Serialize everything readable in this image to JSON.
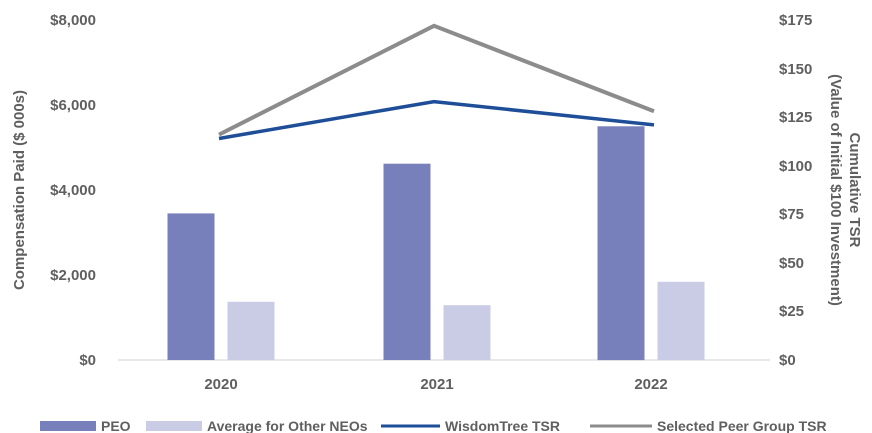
{
  "chart_data": {
    "type": "bar",
    "categories": [
      "2020",
      "2021",
      "2022"
    ],
    "bar_series": [
      {
        "name": "PEO",
        "values": [
          3450,
          4620,
          5500
        ],
        "color": "#7880bc"
      },
      {
        "name": "Average for Other NEOs",
        "values": [
          1370,
          1290,
          1840
        ],
        "color": "#c9cce4"
      }
    ],
    "line_series": [
      {
        "name": "WisdomTree TSR",
        "values": [
          114,
          133,
          121
        ],
        "color": "#1f4e99"
      },
      {
        "name": "Selected Peer Group TSR",
        "values": [
          116,
          172,
          128
        ],
        "color": "#8c8c8c"
      }
    ],
    "y_left": {
      "label": "Compensation Paid ($ 000s)",
      "lim": [
        0,
        8000
      ],
      "ticks": [
        "$0",
        "$2,000",
        "$4,000",
        "$6,000",
        "$8,000"
      ]
    },
    "y_right": {
      "label_line1": "Cumulative TSR",
      "label_line2": "(Value of Initial $100 Investment)",
      "lim": [
        0,
        175
      ],
      "ticks": [
        "$0",
        "$25",
        "$50",
        "$75",
        "$100",
        "$125",
        "$150",
        "$175"
      ]
    },
    "grid": false,
    "legend_position": "bottom"
  }
}
